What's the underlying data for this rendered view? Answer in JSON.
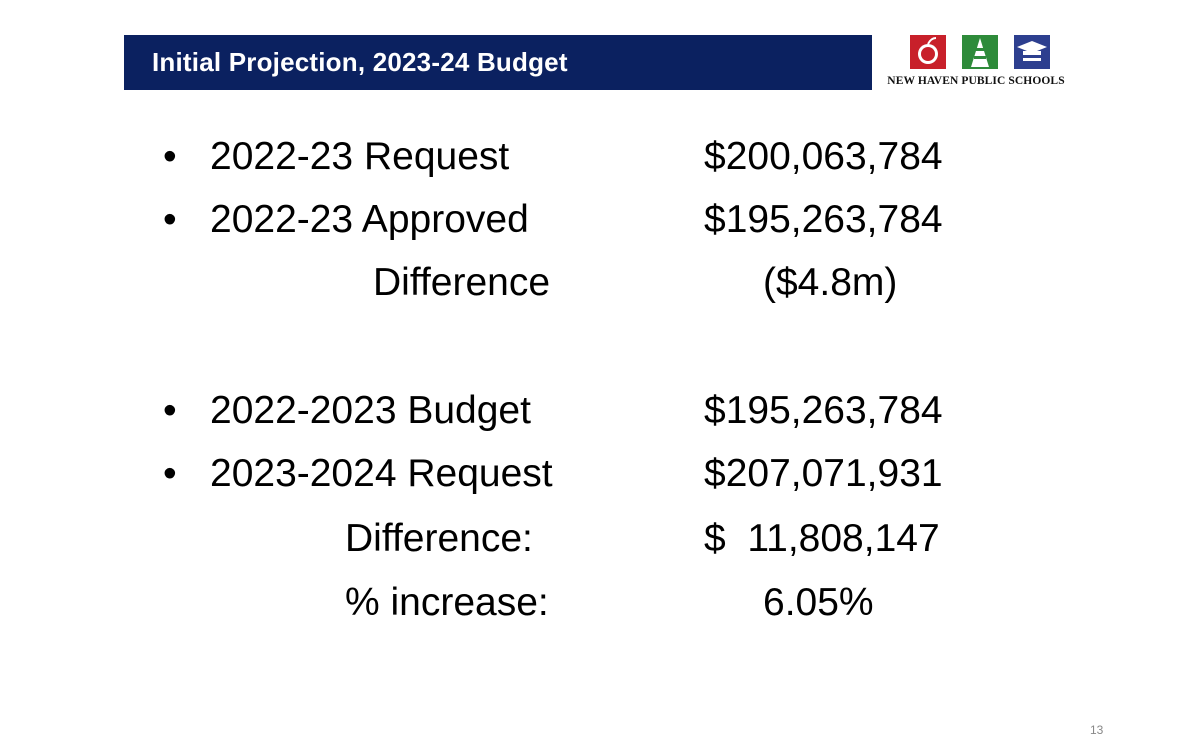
{
  "header": {
    "title": "Initial Projection, 2023-24 Budget",
    "logo_text": "NEW HAVEN PUBLIC SCHOOLS",
    "logo_icons": [
      "apple-icon",
      "tower-icon",
      "graduation-cap-icon"
    ],
    "colors": {
      "title_bg": "#0b2160",
      "apple_red": "#c8202a",
      "tower_green": "#2e8b3a",
      "cap_blue": "#2d3f8f"
    }
  },
  "rows": [
    {
      "bullet": "•",
      "label": "2022-23 Request",
      "amount": "$200,063,784"
    },
    {
      "bullet": "•",
      "label": "2022-23 Approved",
      "amount": "$195,263,784"
    },
    {
      "label": "Difference",
      "amount": "($4.8m)"
    },
    {
      "bullet": "•",
      "label": "2022-2023 Budget",
      "amount": "$195,263,784"
    },
    {
      "bullet": "•",
      "label": "2023-2024 Request",
      "amount": "$207,071,931"
    },
    {
      "label": "Difference:",
      "amount": "$  11,808,147"
    },
    {
      "label": "% increase:",
      "amount": "6.05%"
    }
  ],
  "page_number": "13"
}
